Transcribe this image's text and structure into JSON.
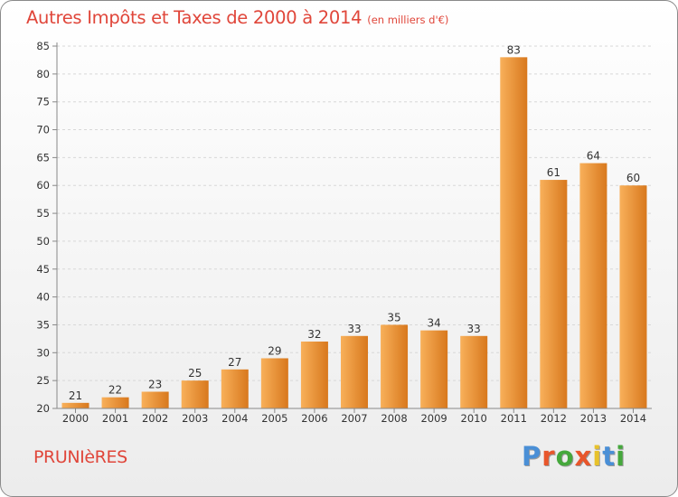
{
  "title": "Autres Impôts et Taxes de 2000 à 2014",
  "unit": "(en milliers d'€)",
  "commune": "PRUNIèRES",
  "logo": {
    "text": "Proxiti",
    "letter_colors": [
      "#4a8fd6",
      "#e8562b",
      "#45a83c",
      "#e8562b",
      "#e8c22b",
      "#4a8fd6",
      "#45a83c"
    ]
  },
  "colors": {
    "bar_light": "#f8b05a",
    "bar_dark": "#d8781d",
    "axis": "#888888",
    "grid": "#d8d8d8",
    "text": "#333333"
  },
  "chart_data": {
    "type": "bar",
    "title": "Autres Impôts et Taxes de 2000 à 2014",
    "xlabel": "",
    "ylabel": "",
    "categories": [
      "2000",
      "2001",
      "2002",
      "2003",
      "2004",
      "2005",
      "2006",
      "2007",
      "2008",
      "2009",
      "2010",
      "2011",
      "2012",
      "2013",
      "2014"
    ],
    "values": [
      21,
      22,
      23,
      25,
      27,
      29,
      32,
      33,
      35,
      34,
      33,
      83,
      61,
      64,
      60
    ],
    "ylim": [
      20,
      85
    ],
    "yticks": [
      "20",
      "25",
      "30",
      "35",
      "40",
      "45",
      "50",
      "55",
      "60",
      "65",
      "70",
      "75",
      "80",
      "85"
    ],
    "grid": true,
    "data_labels": true
  }
}
